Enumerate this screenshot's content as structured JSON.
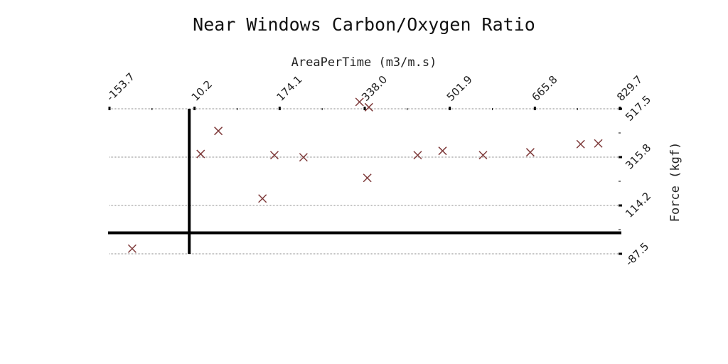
{
  "chart_data": {
    "type": "scatter",
    "title": "Near Windows Carbon/Oxygen Ratio",
    "xlabel": "AreaPerTime (m3/m.s)",
    "ylabel": "Force (kgf)",
    "x_axis_position": "top",
    "y_axis_position": "right",
    "xlim": [
      -153.7,
      829.7
    ],
    "ylim": [
      -87.5,
      517.5
    ],
    "x_ticks": [
      "-153.7",
      "10.2",
      "174.1",
      "338.0",
      "501.9",
      "665.8",
      "829.7"
    ],
    "y_ticks": [
      "517.5",
      "315.8",
      "114.2",
      "-87.5"
    ],
    "grid": true,
    "marker": "x",
    "colors": {
      "marker": "#7f3b3b"
    },
    "series": [
      {
        "points": [
          {
            "x": -110,
            "y": -66
          },
          {
            "x": 56,
            "y": 425
          },
          {
            "x": 22,
            "y": 329
          },
          {
            "x": 141,
            "y": 143
          },
          {
            "x": 164,
            "y": 324
          },
          {
            "x": 220,
            "y": 315
          },
          {
            "x": 328,
            "y": 546
          },
          {
            "x": 346,
            "y": 524
          },
          {
            "x": 343,
            "y": 229
          },
          {
            "x": 440,
            "y": 324
          },
          {
            "x": 488,
            "y": 342
          },
          {
            "x": 566,
            "y": 324
          },
          {
            "x": 657,
            "y": 336
          },
          {
            "x": 754,
            "y": 370
          },
          {
            "x": 788,
            "y": 373
          }
        ]
      }
    ]
  }
}
